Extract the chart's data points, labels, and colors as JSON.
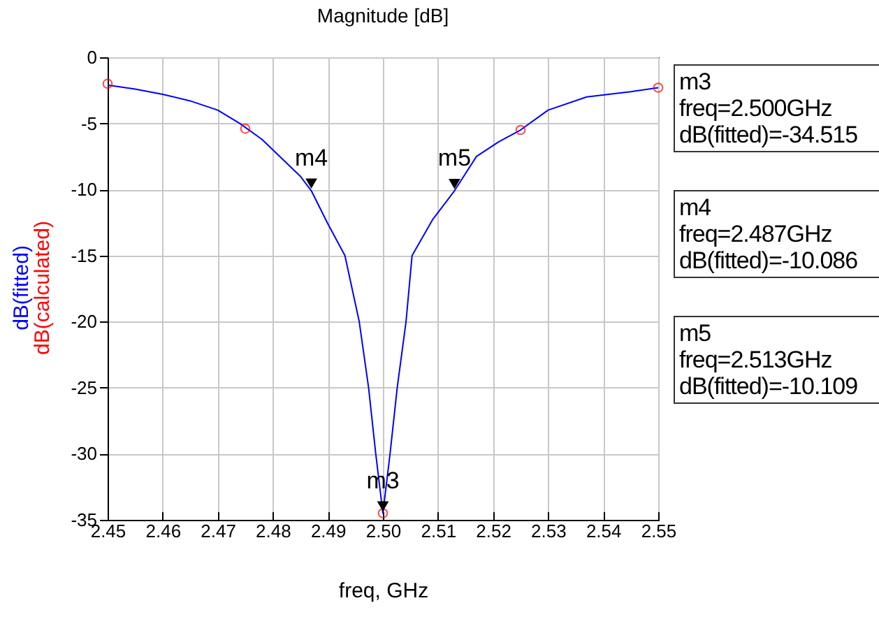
{
  "chart_data": {
    "type": "line",
    "title": "Magnitude [dB]",
    "xlabel": "freq, GHz",
    "xlim": [
      2.45,
      2.55
    ],
    "xticks": [
      2.45,
      2.46,
      2.47,
      2.48,
      2.49,
      {
        "value": 2.5,
        "label": "2.50"
      },
      2.51,
      2.52,
      2.53,
      2.54,
      2.55
    ],
    "ylim": [
      -35,
      0
    ],
    "yticks": [
      -35,
      -30,
      -25,
      -20,
      -15,
      -10,
      -5,
      0
    ],
    "grid": true,
    "legend": false,
    "series": [
      {
        "name": "dB(fitted)",
        "type": "line",
        "color": "#0000ff",
        "x": [
          2.45,
          2.455,
          2.46,
          2.465,
          2.47,
          2.474,
          2.478,
          2.482,
          2.485,
          2.487,
          2.49,
          2.4931,
          2.4957,
          2.4974,
          2.4987,
          2.5,
          2.5013,
          2.5026,
          2.5042,
          2.5053,
          2.509,
          2.513,
          2.517,
          2.521,
          2.525,
          2.53,
          2.537,
          2.545,
          2.55
        ],
        "values": [
          -2.1,
          -2.4,
          -2.8,
          -3.3,
          -4.0,
          -5.0,
          -6.2,
          -7.8,
          -9.0,
          -10.1,
          -12.6,
          -15,
          -20,
          -25,
          -30,
          -34.5,
          -30,
          -25,
          -20,
          -15,
          -12.3,
          -10.1,
          -7.5,
          -6.4,
          -5.5,
          -4.0,
          -3.0,
          -2.6,
          -2.3
        ]
      },
      {
        "name": "dB(calculated)",
        "type": "scatter",
        "marker": "circle",
        "color": "#ff0000",
        "x": [
          2.45,
          2.475,
          2.5,
          2.525,
          2.55
        ],
        "values": [
          -2.0,
          -5.4,
          -34.5,
          -5.5,
          -2.3
        ]
      }
    ],
    "annotations": [
      {
        "text": "m3",
        "x": 2.5,
        "y": -34.515
      },
      {
        "text": "m4",
        "x": 2.487,
        "y": -10.086
      },
      {
        "text": "m5",
        "x": 2.513,
        "y": -10.109
      },
      "m3\nfreq=2.500GHz\ndB(fitted)=-34.515",
      "m4\nfreq=2.487GHz\ndB(fitted)=-10.086",
      "m5\nfreq=2.513GHz\ndB(fitted)=-10.109"
    ]
  }
}
